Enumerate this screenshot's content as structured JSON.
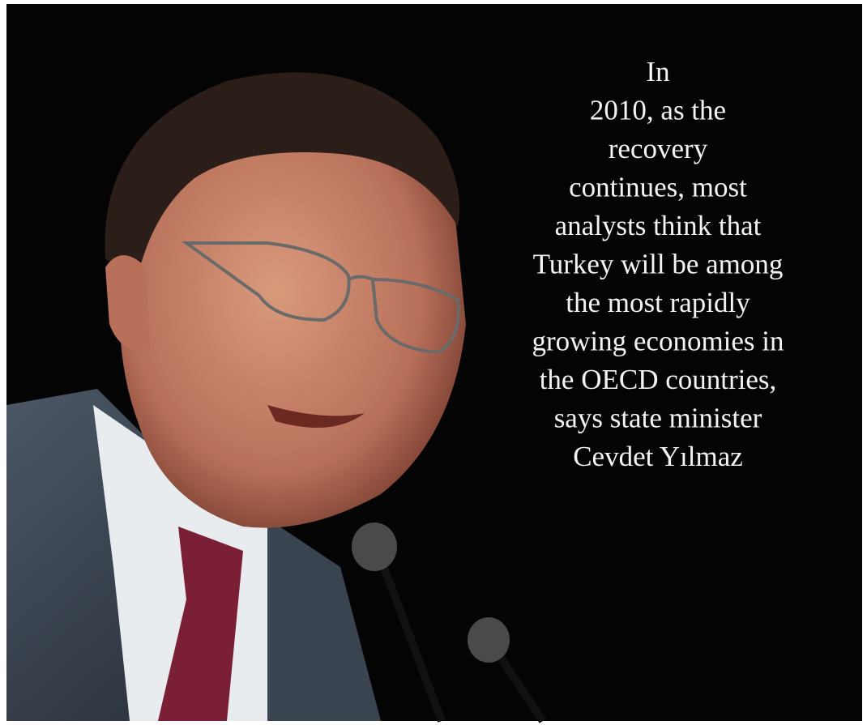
{
  "quote": {
    "lines": [
      "In",
      "2010, as the",
      "recovery",
      "continues, most",
      "analysts think that",
      "Turkey will be among",
      "the most rapidly",
      "growing economies in",
      "the OECD countries,",
      "says state minister",
      "Cevdet Yılmaz"
    ]
  }
}
